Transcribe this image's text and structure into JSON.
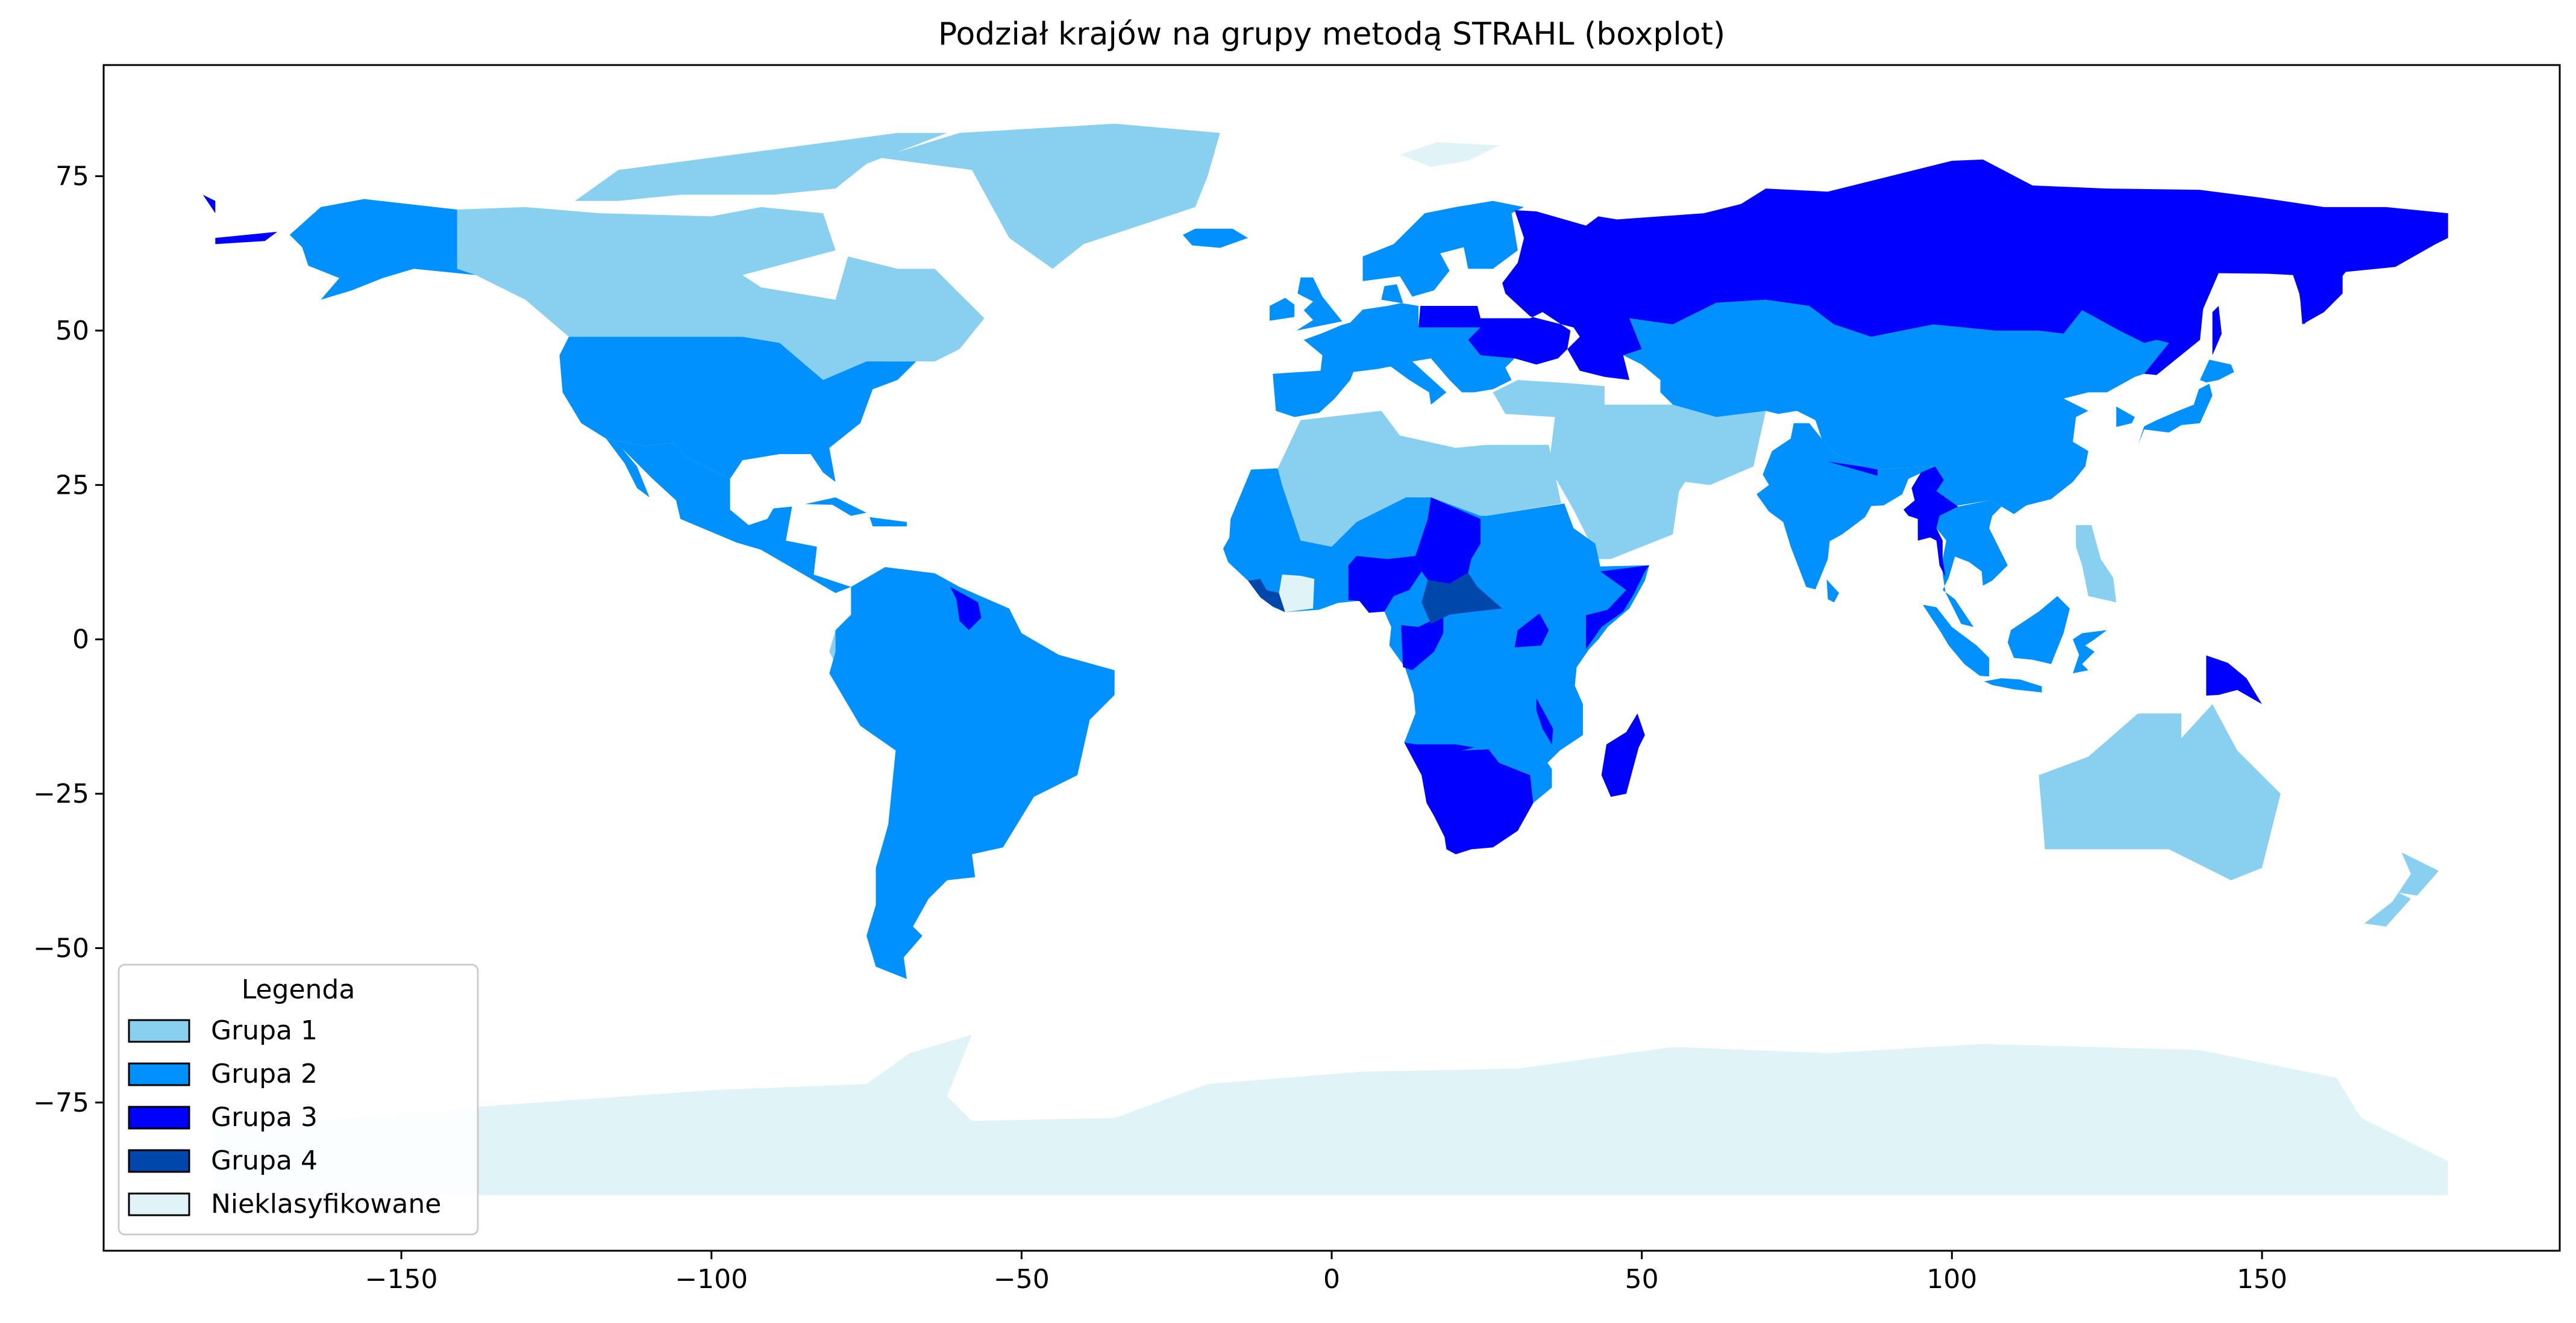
{
  "chart_data": {
    "type": "choropleth-map",
    "title": "Podział krajów na grupy metodą STRAHL (boxplot)",
    "xlabel": "",
    "ylabel": "",
    "xlim": [
      -198,
      198
    ],
    "ylim": [
      -99,
      93
    ],
    "xticks": [
      -150,
      -100,
      -50,
      0,
      50,
      100,
      150
    ],
    "yticks": [
      75,
      50,
      25,
      0,
      -25,
      -50,
      -75
    ],
    "xtick_labels": [
      "−150",
      "−100",
      "−50",
      "0",
      "50",
      "100",
      "150"
    ],
    "ytick_labels": [
      "75",
      "50",
      "25",
      "0",
      "−25",
      "−50",
      "−75"
    ],
    "grid": false,
    "legend": {
      "title": "Legenda",
      "placement": "lower-left",
      "entries": [
        {
          "label": "Grupa 1",
          "color": "#89CFF0"
        },
        {
          "label": "Grupa 2",
          "color": "#0091FF"
        },
        {
          "label": "Grupa 3",
          "color": "#0000FF"
        },
        {
          "label": "Grupa 4",
          "color": "#0047AB"
        },
        {
          "label": "Nieklasyfikowane",
          "color": "#E0F4F8"
        }
      ]
    },
    "regions": [
      {
        "group": "Grupa 1",
        "countries": [
          "Canada",
          "Greenland",
          "Algeria",
          "Libya",
          "Egypt",
          "Saudi Arabia",
          "Iran",
          "Turkmenistan",
          "Australia",
          "New Zealand",
          "Philippines",
          "Ecuador",
          "Turkey",
          "Kyrgyzstan"
        ]
      },
      {
        "group": "Grupa 2",
        "countries": [
          "United States",
          "Alaska",
          "Mexico",
          "Brazil",
          "Argentina",
          "Peru",
          "Bolivia",
          "Chile",
          "Colombia",
          "Western Europe",
          "Scandinavia",
          "China",
          "India",
          "Kazakhstan",
          "Mongolia",
          "Japan",
          "Indonesia",
          "Thailand",
          "Vietnam",
          "DR Congo",
          "Angola",
          "Tanzania",
          "Ethiopia",
          "Sudan",
          "West Africa",
          "Zambia",
          "Mozambique"
        ]
      },
      {
        "group": "Grupa 3",
        "countries": [
          "Russia",
          "Ukraine",
          "Belarus",
          "Poland",
          "Nigeria",
          "Chad",
          "Madagascar",
          "South Africa",
          "Namibia",
          "Botswana",
          "Myanmar",
          "Somalia",
          "Papua New Guinea",
          "Guyana",
          "Nepal",
          "Congo",
          "Uganda",
          "Malawi"
        ]
      },
      {
        "group": "Grupa 4",
        "countries": [
          "Liberia",
          "Sierra Leone",
          "Central African Republic"
        ]
      },
      {
        "group": "Nieklasyfikowane",
        "countries": [
          "Antarctica",
          "Svalbard",
          "Côte d'Ivoire"
        ]
      }
    ]
  }
}
